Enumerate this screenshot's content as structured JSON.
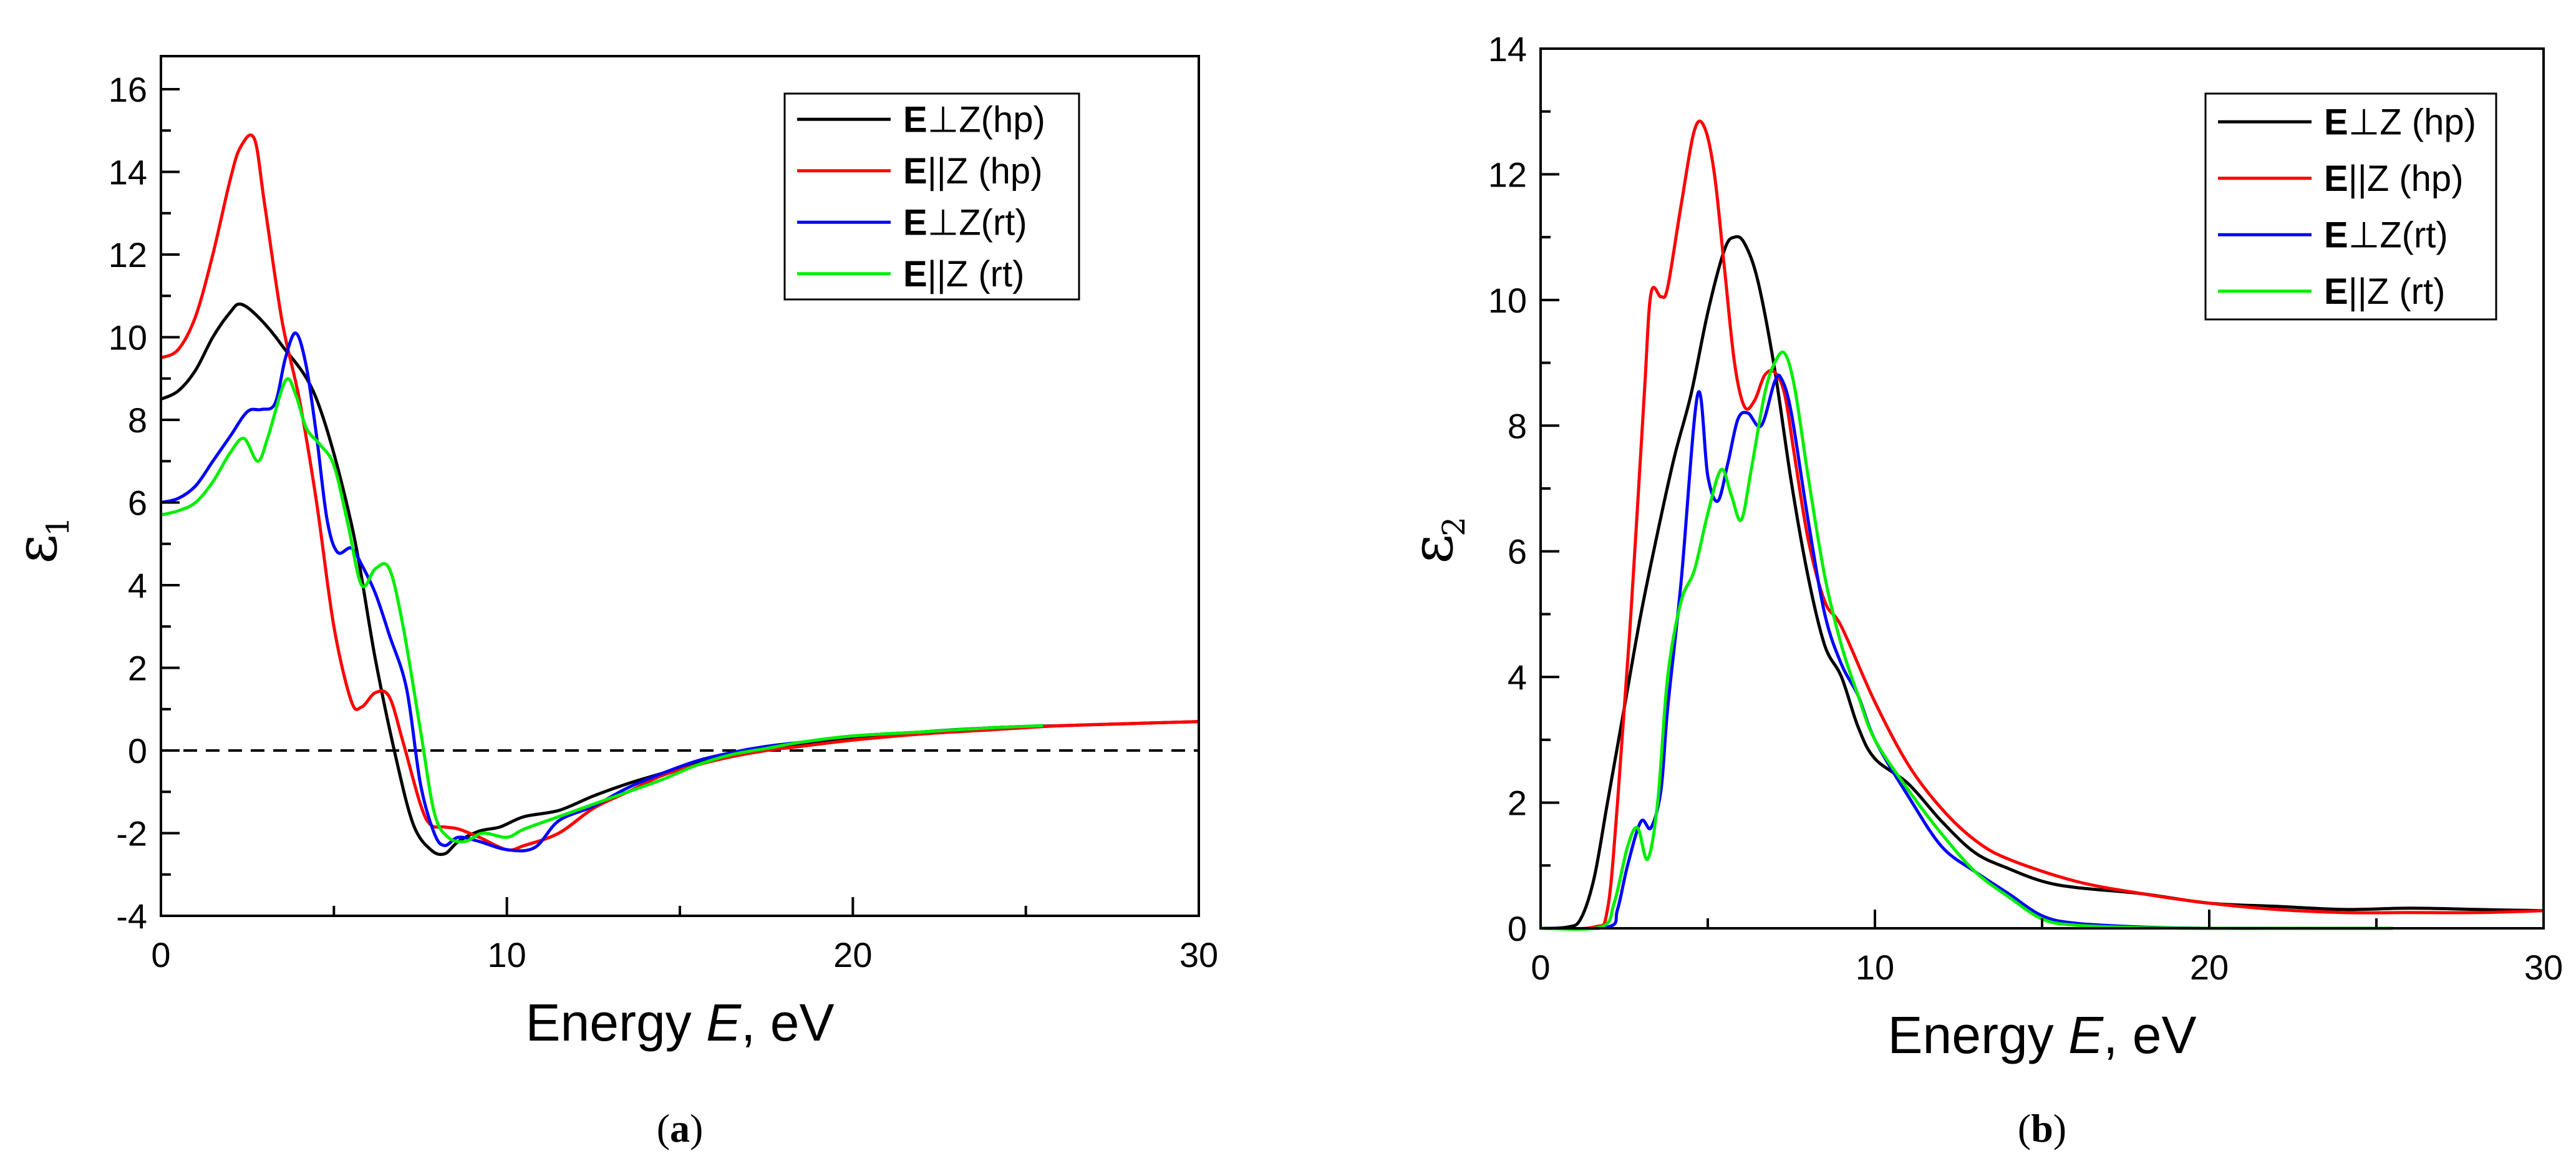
{
  "chart_data": [
    {
      "type": "line",
      "panel_label": "a",
      "xlabel_prefix": "Energy ",
      "xlabel_var": "E",
      "xlabel_suffix": ", eV",
      "ylabel_symbol": "ε",
      "ylabel_subscript": "1",
      "xlim": [
        0,
        30
      ],
      "ylim": [
        -4,
        16.8
      ],
      "xticks": [
        0,
        10,
        20,
        30
      ],
      "yticks": [
        -4,
        -2,
        0,
        2,
        4,
        6,
        8,
        10,
        12,
        14,
        16
      ],
      "reference_line_y": 0,
      "legend_position": "top-right",
      "series": [
        {
          "bold": "E",
          "rest": "⊥Z(hp)",
          "color": "#000000",
          "x": [
            0,
            0.5,
            1,
            1.5,
            2,
            2.3,
            2.8,
            3.5,
            4.5,
            5.5,
            6.2,
            6.8,
            7.3,
            7.8,
            8.2,
            8.6,
            9.2,
            9.8,
            10.5,
            11.5,
            12.5,
            13.5,
            14.5,
            15.5,
            16.5,
            17.5,
            18.5,
            20,
            22,
            24,
            26,
            28,
            30
          ],
          "y": [
            8.5,
            8.7,
            9.2,
            10.0,
            10.6,
            10.8,
            10.5,
            9.8,
            8.5,
            5.5,
            2.2,
            -0.2,
            -1.8,
            -2.4,
            -2.5,
            -2.2,
            -1.95,
            -1.85,
            -1.6,
            -1.45,
            -1.1,
            -0.8,
            -0.55,
            -0.3,
            -0.1,
            0.05,
            0.15,
            0.3,
            0.45,
            0.55,
            0.6,
            0.65,
            0.7
          ]
        },
        {
          "bold": "E",
          "rest": "||Z (hp)",
          "color": "#ff0000",
          "x": [
            0,
            0.5,
            1,
            1.5,
            2,
            2.3,
            2.7,
            3.0,
            3.5,
            4,
            4.5,
            5,
            5.5,
            5.8,
            6.2,
            6.6,
            7,
            7.5,
            7.8,
            8.2,
            8.6,
            9.2,
            10,
            10.5,
            11.5,
            12.5,
            13.5,
            14.5,
            15.5,
            16.5,
            17.5,
            18.5,
            20,
            22,
            24,
            26,
            28,
            30
          ],
          "y": [
            9.5,
            9.7,
            10.5,
            12.0,
            13.8,
            14.6,
            14.8,
            13.2,
            10.4,
            8.5,
            6.0,
            3.0,
            1.2,
            1.05,
            1.4,
            1.3,
            0.2,
            -1.3,
            -1.8,
            -1.85,
            -1.9,
            -2.1,
            -2.4,
            -2.3,
            -2.0,
            -1.4,
            -1.0,
            -0.6,
            -0.35,
            -0.15,
            0.0,
            0.1,
            0.25,
            0.4,
            0.5,
            0.6,
            0.65,
            0.7
          ]
        },
        {
          "bold": "E",
          "rest": "⊥Z(rt)",
          "color": "#0000ff",
          "x": [
            0,
            0.5,
            1,
            1.5,
            2,
            2.5,
            2.9,
            3.3,
            3.6,
            3.9,
            4.2,
            4.5,
            4.8,
            5.1,
            5.5,
            5.8,
            6.2,
            6.6,
            7.1,
            7.5,
            7.9,
            8.2,
            8.6,
            9.2,
            10,
            10.8,
            11.5,
            12.5,
            13.5,
            14.5,
            15.5,
            16.5,
            17.5,
            18.5,
            20,
            22,
            24,
            25.5
          ],
          "y": [
            6.0,
            6.1,
            6.4,
            7.0,
            7.6,
            8.2,
            8.25,
            8.4,
            9.5,
            10.1,
            9.3,
            7.6,
            5.6,
            4.8,
            4.9,
            4.5,
            3.8,
            2.8,
            1.5,
            -0.8,
            -2.0,
            -2.3,
            -2.1,
            -2.2,
            -2.4,
            -2.35,
            -1.7,
            -1.35,
            -0.9,
            -0.55,
            -0.25,
            -0.05,
            0.1,
            0.2,
            0.35,
            0.45,
            0.55,
            0.6
          ]
        },
        {
          "bold": "E",
          "rest": "||Z (rt)",
          "color": "#00ee00",
          "x": [
            0,
            0.5,
            1,
            1.5,
            2,
            2.4,
            2.8,
            3.1,
            3.6,
            3.9,
            4.2,
            4.6,
            5,
            5.4,
            5.8,
            6.2,
            6.6,
            7,
            7.5,
            7.9,
            8.3,
            8.8,
            9.3,
            10,
            10.5,
            11.5,
            12.5,
            13.5,
            14.5,
            15.5,
            16.5,
            17.5,
            18.5,
            20,
            22,
            24,
            25.5
          ],
          "y": [
            5.7,
            5.8,
            6.0,
            6.5,
            7.2,
            7.55,
            7.0,
            7.6,
            8.95,
            8.6,
            7.8,
            7.4,
            6.9,
            5.5,
            4.0,
            4.4,
            4.4,
            3.0,
            0.5,
            -1.5,
            -2.1,
            -2.2,
            -2.0,
            -2.1,
            -1.9,
            -1.6,
            -1.3,
            -1.0,
            -0.7,
            -0.35,
            -0.1,
            0.05,
            0.2,
            0.35,
            0.45,
            0.55,
            0.6
          ]
        }
      ]
    },
    {
      "type": "line",
      "panel_label": "b",
      "xlabel_prefix": "Energy ",
      "xlabel_var": "E",
      "xlabel_suffix": ", eV",
      "ylabel_symbol": "ε",
      "ylabel_subscript": "2",
      "xlim": [
        0,
        30
      ],
      "ylim": [
        0,
        14
      ],
      "xticks": [
        0,
        10,
        20,
        30
      ],
      "yticks": [
        0,
        2,
        4,
        6,
        8,
        10,
        12,
        14
      ],
      "legend_position": "top-right",
      "series": [
        {
          "bold": "E",
          "rest": "⊥Z (hp)",
          "color": "#000000",
          "x": [
            0,
            0.8,
            1.2,
            1.6,
            2,
            2.5,
            3,
            3.5,
            4,
            4.5,
            5,
            5.5,
            5.8,
            6.1,
            6.5,
            7,
            7.5,
            8,
            8.5,
            9,
            9.5,
            10,
            11,
            12,
            13,
            14,
            15,
            16,
            18,
            20,
            22,
            24,
            26,
            28,
            30
          ],
          "y": [
            0,
            0.02,
            0.15,
            0.8,
            2.0,
            3.5,
            5.0,
            6.3,
            7.5,
            8.5,
            9.8,
            10.8,
            11.0,
            10.9,
            10.3,
            8.9,
            7.1,
            5.6,
            4.5,
            4.0,
            3.2,
            2.7,
            2.3,
            1.7,
            1.2,
            0.95,
            0.75,
            0.65,
            0.55,
            0.4,
            0.35,
            0.3,
            0.32,
            0.3,
            0.28
          ]
        },
        {
          "bold": "E",
          "rest": "||Z (hp)",
          "color": "#ff0000",
          "x": [
            0,
            1.6,
            2,
            2.3,
            2.7,
            3.1,
            3.3,
            3.6,
            3.8,
            4.2,
            4.6,
            4.9,
            5.2,
            5.5,
            5.8,
            6.1,
            6.4,
            6.7,
            7.0,
            7.3,
            7.6,
            8,
            8.5,
            9,
            10,
            11,
            12,
            13,
            14,
            16,
            18,
            20,
            22,
            24,
            26,
            28,
            30
          ],
          "y": [
            0,
            0.02,
            0.3,
            2.0,
            5.0,
            8.5,
            10.1,
            10.05,
            10.2,
            11.5,
            12.7,
            12.75,
            12.0,
            10.5,
            9.0,
            8.3,
            8.4,
            8.8,
            8.85,
            8.5,
            7.5,
            6.2,
            5.2,
            4.8,
            3.6,
            2.6,
            1.9,
            1.4,
            1.1,
            0.75,
            0.55,
            0.4,
            0.3,
            0.25,
            0.25,
            0.25,
            0.28
          ]
        },
        {
          "bold": "E",
          "rest": "⊥Z(rt)",
          "color": "#0000ff",
          "x": [
            0,
            2,
            2.3,
            2.6,
            3,
            3.3,
            3.6,
            3.8,
            4.2,
            4.7,
            5.0,
            5.3,
            5.6,
            5.9,
            6.2,
            6.6,
            7.0,
            7.2,
            7.5,
            8,
            8.5,
            9,
            9.5,
            10,
            11,
            12,
            13,
            14,
            15,
            16,
            18,
            20,
            22,
            24,
            25.5
          ],
          "y": [
            0,
            0.02,
            0.3,
            1.0,
            1.7,
            1.6,
            2.2,
            3.5,
            5.5,
            8.5,
            7.2,
            6.8,
            7.4,
            8.1,
            8.2,
            8.0,
            8.7,
            8.75,
            8.2,
            6.5,
            5.0,
            4.2,
            3.7,
            3.0,
            2.1,
            1.3,
            0.9,
            0.55,
            0.2,
            0.08,
            0.02,
            0,
            0,
            0,
            0
          ]
        },
        {
          "bold": "E",
          "rest": "||Z (rt)",
          "color": "#00ee00",
          "x": [
            0,
            1.8,
            2.2,
            2.6,
            2.9,
            3.2,
            3.5,
            3.8,
            4.2,
            4.6,
            5.0,
            5.4,
            5.7,
            6.0,
            6.3,
            6.7,
            7.0,
            7.3,
            7.6,
            8,
            8.5,
            9,
            9.5,
            10,
            11,
            12,
            13,
            14,
            15,
            16,
            18,
            20,
            22,
            24,
            25.5
          ],
          "y": [
            0,
            0.02,
            0.4,
            1.3,
            1.6,
            1.1,
            2.0,
            4.0,
            5.2,
            5.7,
            6.6,
            7.3,
            6.9,
            6.5,
            7.3,
            8.5,
            9.0,
            9.15,
            8.6,
            7.2,
            5.6,
            4.5,
            3.7,
            3.0,
            2.2,
            1.5,
            0.9,
            0.5,
            0.15,
            0.05,
            0.01,
            0,
            0,
            0,
            0
          ]
        }
      ]
    }
  ]
}
